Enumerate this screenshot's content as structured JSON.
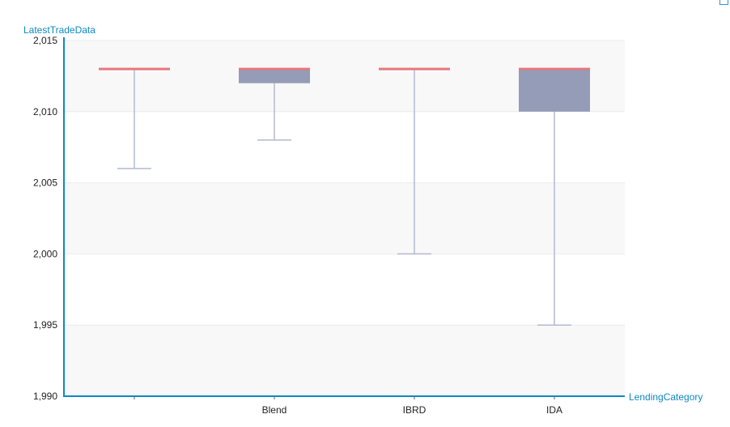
{
  "chart_data": {
    "type": "boxplot",
    "xlabel": "LendingCategory",
    "ylabel": "LatestTradeData",
    "ylim": [
      1990,
      2015
    ],
    "yticks": [
      {
        "value": 1990,
        "label": "1,990"
      },
      {
        "value": 1995,
        "label": "1,995"
      },
      {
        "value": 2000,
        "label": "2,000"
      },
      {
        "value": 2005,
        "label": "2,005"
      },
      {
        "value": 2010,
        "label": "2,010"
      },
      {
        "value": 2015,
        "label": "2,015"
      }
    ],
    "categories": [
      "",
      "Blend",
      "IBRD",
      "IDA"
    ],
    "boxes": [
      {
        "category": "",
        "min": 2006,
        "q1": 2013,
        "median": 2013,
        "q3": 2013,
        "max": 2013
      },
      {
        "category": "Blend",
        "min": 2008,
        "q1": 2012,
        "median": 2013,
        "q3": 2013,
        "max": 2013
      },
      {
        "category": "IBRD",
        "min": 2000,
        "q1": 2013,
        "median": 2013,
        "q3": 2013,
        "max": 2013
      },
      {
        "category": "IDA",
        "min": 1995,
        "q1": 2010,
        "median": 2013,
        "q3": 2013,
        "max": 2013
      }
    ],
    "colors": {
      "axis": "#0e88c4",
      "box_fill": "#949cb7",
      "whisker": "#b3bacf",
      "median": "#e8777c",
      "band": "#f8f8f8",
      "gridline": "#ebebeb"
    },
    "grid": true
  }
}
